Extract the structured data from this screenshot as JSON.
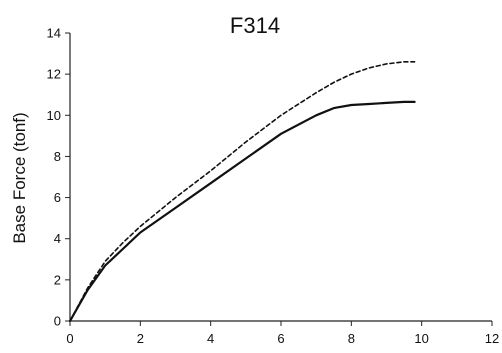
{
  "chart_data": {
    "type": "line",
    "title": "F314",
    "xlabel": "",
    "ylabel": "Base Force (tonf)",
    "xlim": [
      0,
      12
    ],
    "ylim": [
      0,
      14
    ],
    "xticks": [
      0,
      2,
      4,
      6,
      8,
      10,
      12
    ],
    "yticks": [
      0,
      2,
      4,
      6,
      8,
      10,
      12,
      14
    ],
    "grid": false,
    "legend": "none",
    "series": [
      {
        "style": "solid",
        "color": "#111111",
        "x": [
          0,
          0.5,
          1.0,
          1.5,
          2.0,
          3.0,
          4.0,
          5.0,
          6.0,
          7.0,
          7.5,
          8.0,
          8.5,
          9.0,
          9.5,
          9.8
        ],
        "y": [
          0,
          1.5,
          2.7,
          3.5,
          4.3,
          5.5,
          6.7,
          7.9,
          9.1,
          10.0,
          10.35,
          10.5,
          10.55,
          10.6,
          10.65,
          10.65
        ]
      },
      {
        "style": "dashed",
        "color": "#111111",
        "x": [
          0,
          0.5,
          1.0,
          1.5,
          2.0,
          3.0,
          4.0,
          5.0,
          6.0,
          7.0,
          7.5,
          8.0,
          8.5,
          9.0,
          9.5,
          9.8
        ],
        "y": [
          0,
          1.6,
          2.9,
          3.8,
          4.6,
          6.0,
          7.3,
          8.7,
          10.0,
          11.1,
          11.6,
          12.0,
          12.3,
          12.5,
          12.6,
          12.6
        ]
      }
    ]
  }
}
